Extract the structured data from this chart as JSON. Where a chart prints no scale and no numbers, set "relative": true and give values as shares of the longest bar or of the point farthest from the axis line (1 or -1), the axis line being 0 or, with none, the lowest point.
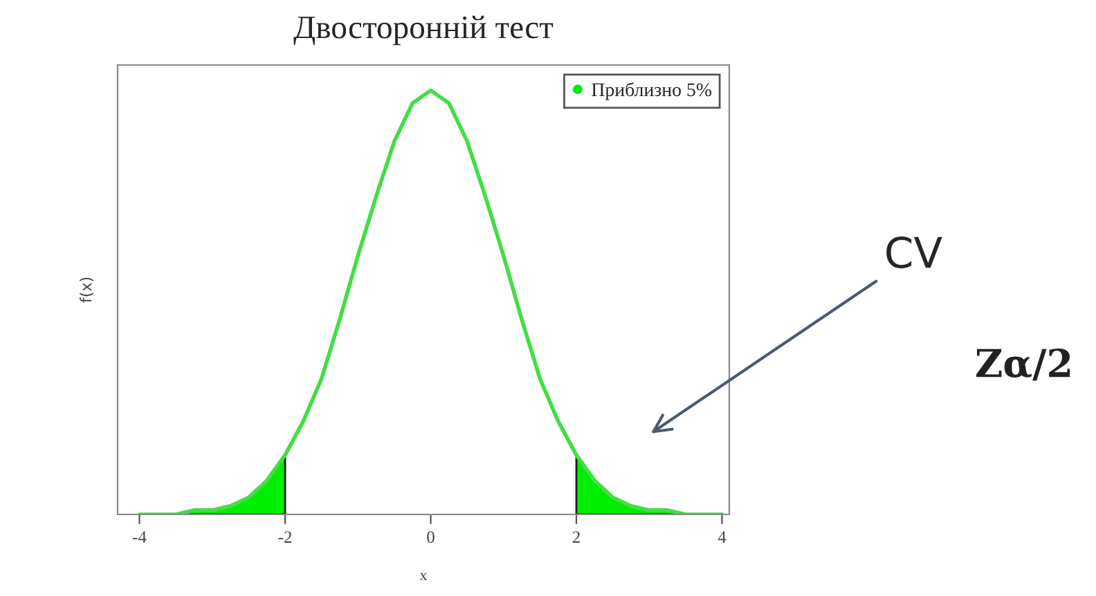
{
  "chart_data": {
    "type": "line",
    "title": "Двосторонній тест",
    "xlabel": "x",
    "ylabel": "f(x)",
    "relative": true,
    "xlim": [
      -4.3,
      4.1
    ],
    "xticks": [
      -4,
      -2,
      0,
      2,
      4
    ],
    "tick_labels": "x",
    "grid": false,
    "legend": "top right",
    "series": [
      {
        "color": "#44dd44",
        "x": [
          -4,
          -3.75,
          -3.5,
          -3.25,
          -3,
          -2.75,
          -2.5,
          -2.25,
          -2,
          -1.75,
          -1.5,
          -1.25,
          -1,
          -0.75,
          -0.5,
          -0.25,
          0,
          0.25,
          0.5,
          0.75,
          1,
          1.25,
          1.5,
          1.75,
          2,
          2.25,
          2.5,
          2.75,
          3,
          3.25,
          3.5,
          3.75,
          4
        ],
        "values": [
          0,
          0,
          0,
          0.01,
          0.01,
          0.02,
          0.04,
          0.08,
          0.14,
          0.22,
          0.32,
          0.46,
          0.61,
          0.75,
          0.88,
          0.97,
          1,
          0.97,
          0.88,
          0.75,
          0.61,
          0.46,
          0.32,
          0.22,
          0.14,
          0.08,
          0.04,
          0.02,
          0.01,
          0.01,
          0,
          0,
          0
        ]
      },
      {
        "type": "area",
        "name": "Приблизно 5%",
        "color": "#00ee00",
        "x": [
          -4,
          -3.75,
          -3.5,
          -3.25,
          -3,
          -2.75,
          -2.5,
          -2.25,
          -2
        ],
        "values": [
          0,
          0,
          0,
          0.01,
          0.01,
          0.02,
          0.04,
          0.08,
          0.14
        ]
      },
      {
        "type": "area",
        "color": "#00ee00",
        "x": [
          2,
          2.25,
          2.5,
          2.75,
          3,
          3.25,
          3.5,
          3.75,
          4
        ],
        "values": [
          0.14,
          0.08,
          0.04,
          0.02,
          0.01,
          0.01,
          0,
          0,
          0
        ]
      }
    ],
    "annotations": [
      "CV",
      "Zα/2"
    ]
  }
}
